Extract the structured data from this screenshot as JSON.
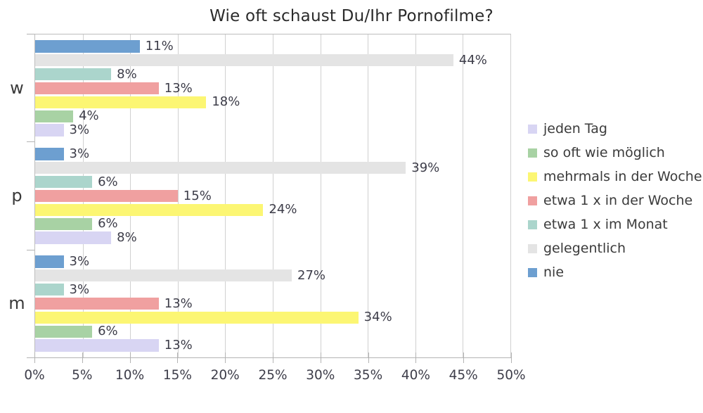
{
  "chart_data": {
    "type": "bar",
    "orientation": "horizontal",
    "title": "Wie oft schaust Du/Ihr Pornofilme?",
    "categories": [
      "w",
      "p",
      "m"
    ],
    "series": [
      {
        "name": "jeden Tag",
        "color": "#d8d5f3",
        "values": [
          3,
          8,
          13
        ]
      },
      {
        "name": "so oft wie möglich",
        "color": "#a8d2a4",
        "values": [
          4,
          6,
          6
        ]
      },
      {
        "name": "mehrmals in der Woche",
        "color": "#fcf673",
        "values": [
          18,
          24,
          34
        ]
      },
      {
        "name": "etwa 1 x in der Woche",
        "color": "#f0a0a0",
        "values": [
          13,
          15,
          13
        ]
      },
      {
        "name": "etwa 1 x im Monat",
        "color": "#abd5cc",
        "values": [
          8,
          6,
          3
        ]
      },
      {
        "name": "gelegentlich",
        "color": "#e4e4e4",
        "values": [
          44,
          39,
          27
        ]
      },
      {
        "name": "nie",
        "color": "#6d9fd0",
        "values": [
          11,
          3,
          3
        ]
      }
    ],
    "bar_order_top_to_bottom": [
      "nie",
      "gelegentlich",
      "etwa 1 x im Monat",
      "etwa 1 x in der Woche",
      "mehrmals in der Woche",
      "so oft wie möglich",
      "jeden Tag"
    ],
    "value_suffix": "%",
    "xlim": [
      0,
      50
    ],
    "x_ticks": [
      "0%",
      "5%",
      "10%",
      "15%",
      "20%",
      "25%",
      "30%",
      "35%",
      "40%",
      "45%",
      "50%"
    ],
    "grid": true,
    "legend_position": "right",
    "axis_color": "#b3b3b3",
    "grid_color": "#d0d0d0",
    "label_color": "#3d3d49"
  }
}
